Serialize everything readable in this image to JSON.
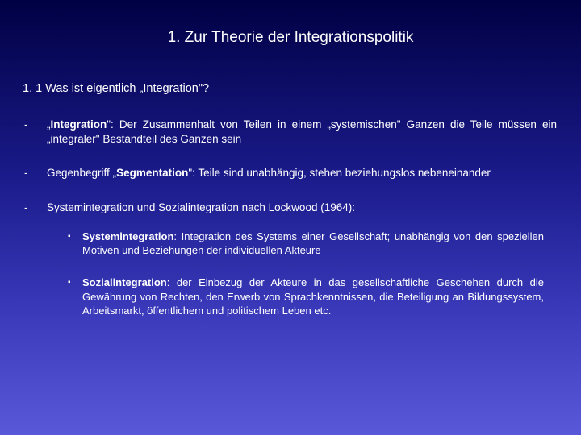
{
  "title": "1. Zur Theorie der Integrationspolitik",
  "subtitle": "1. 1 Was ist eigentlich „Integration\"?",
  "bullets": [
    {
      "marker": "-",
      "parts": [
        {
          "t": "„",
          "b": false
        },
        {
          "t": "Integration",
          "b": true
        },
        {
          "t": "\": Der Zusammenhalt von Teilen in einem „systemischen\" Ganzen die Teile müssen ein „integraler\" Bestandteil des Ganzen sein",
          "b": false
        }
      ]
    },
    {
      "marker": "-",
      "parts": [
        {
          "t": "Gegenbegriff „",
          "b": false
        },
        {
          "t": "Segmentation",
          "b": true
        },
        {
          "t": "\": Teile sind unabhängig, stehen beziehungslos nebeneinander",
          "b": false
        }
      ]
    },
    {
      "marker": "-",
      "parts": [
        {
          "t": "Systemintegration und Sozialintegration nach Lockwood (1964):",
          "b": false
        }
      ]
    }
  ],
  "subbullets": [
    {
      "marker": "▪",
      "parts": [
        {
          "t": "Systemintegration",
          "b": true
        },
        {
          "t": ": Integration des Systems einer Gesellschaft; unabhängig von den speziellen Motiven und Beziehungen der individuellen Akteure",
          "b": false
        }
      ]
    },
    {
      "marker": "▪",
      "parts": [
        {
          "t": "Sozialintegration",
          "b": true
        },
        {
          "t": ": der Einbezug der Akteure in das gesellschaftliche Geschehen durch die Gewährung von Rechten, den Erwerb von Sprachkenntnissen, die Beteiligung an Bildungssystem, Arbeitsmarkt, öffentlichem und politischem Leben etc.",
          "b": false
        }
      ]
    }
  ]
}
